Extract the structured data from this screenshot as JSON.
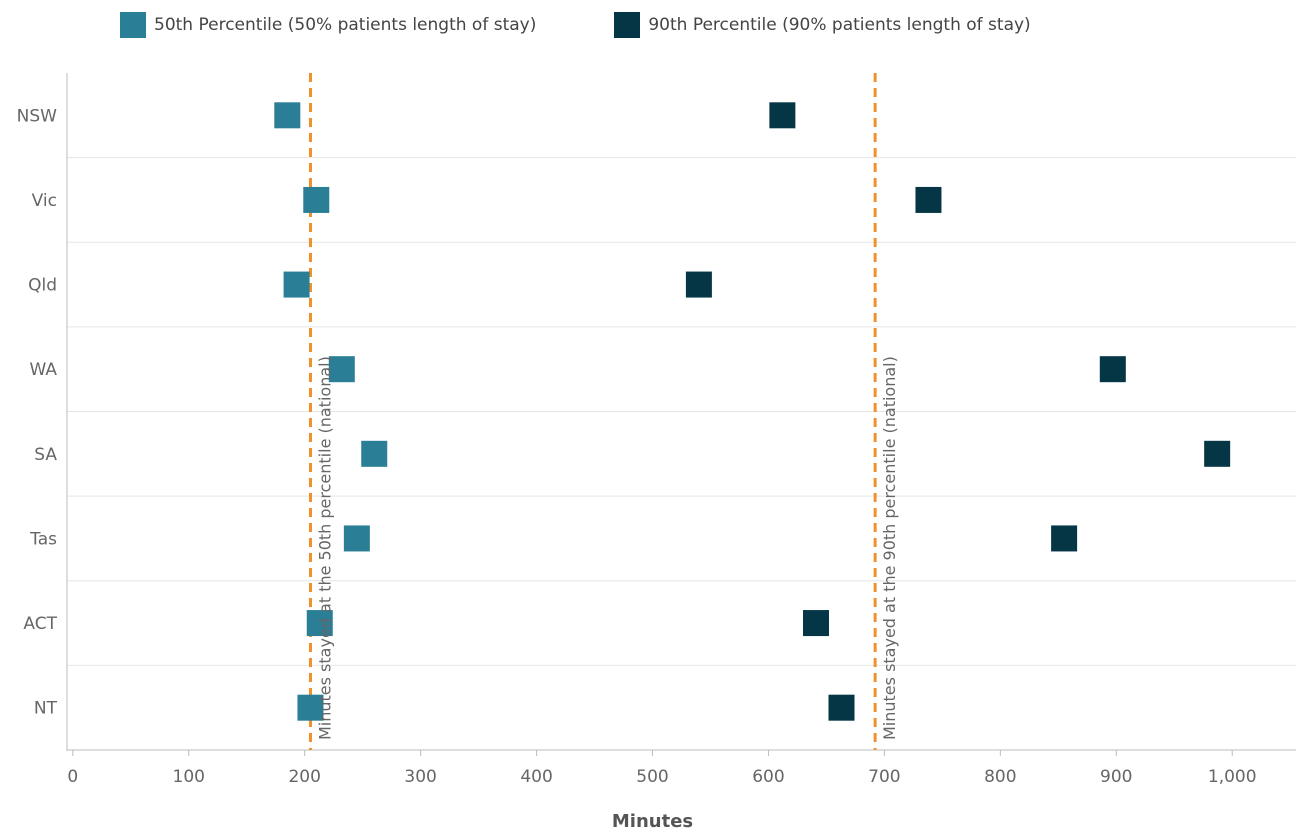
{
  "chart_data": {
    "type": "scatter",
    "title": "",
    "xlabel": "Minutes",
    "ylabel": "",
    "xlim": [
      -5,
      1055
    ],
    "x_ticks": [
      0,
      100,
      200,
      300,
      400,
      500,
      600,
      700,
      800,
      900,
      1000
    ],
    "x_tick_labels": [
      "0",
      "100",
      "200",
      "300",
      "400",
      "500",
      "600",
      "700",
      "800",
      "900",
      "1,000"
    ],
    "categories": [
      "NSW",
      "Vic",
      "Qld",
      "WA",
      "SA",
      "Tas",
      "ACT",
      "NT"
    ],
    "legend_position": "top-left",
    "grid": "horizontal-row-separators",
    "marker": "square",
    "series": [
      {
        "name": "50th Percentile (50% patients length of stay)",
        "color": "#2a7f96",
        "values": [
          185,
          210,
          193,
          232,
          260,
          245,
          213,
          205
        ]
      },
      {
        "name": "90th Percentile (90% patients length of stay)",
        "color": "#053645",
        "values": [
          612,
          738,
          540,
          897,
          987,
          855,
          641,
          663
        ]
      }
    ],
    "reference_lines": [
      {
        "x": 205,
        "label": "Minutes stayed at the 50th percentile (national)",
        "color": "#f0912b"
      },
      {
        "x": 692,
        "label": "Minutes stayed at the 90th percentile (national)",
        "color": "#f0912b"
      }
    ]
  }
}
